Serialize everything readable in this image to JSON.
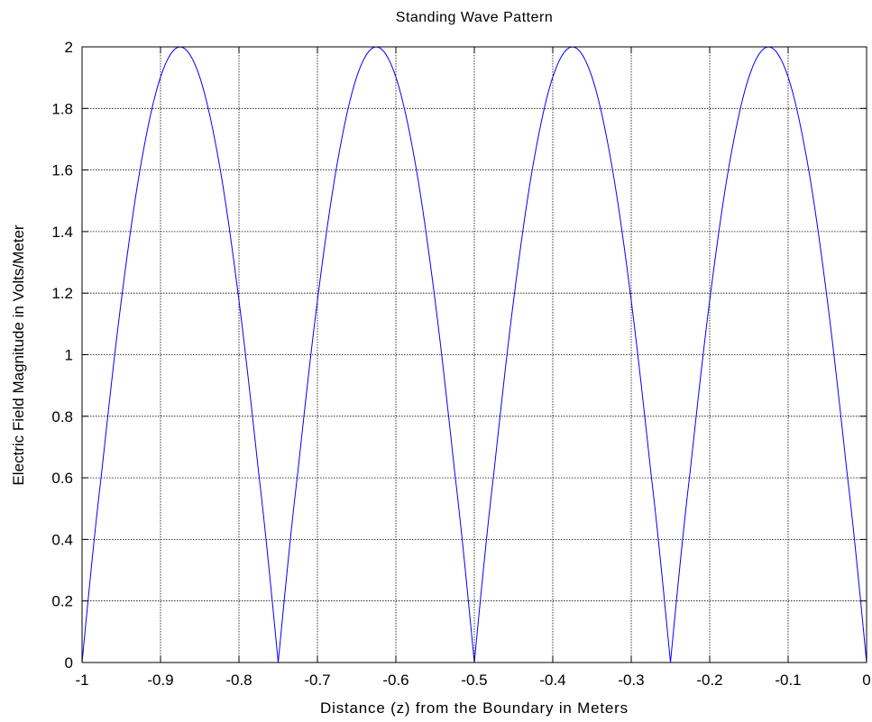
{
  "chart_data": {
    "type": "line",
    "title": "Standing Wave Pattern",
    "xlabel": "Distance (z) from the Boundary in Meters",
    "ylabel": "Electric Field Magnitude in Volts/Meter",
    "xlim": [
      -1,
      0
    ],
    "ylim": [
      0,
      2
    ],
    "grid": true,
    "x_ticks": [
      -1,
      -0.9,
      -0.8,
      -0.7,
      -0.6,
      -0.5,
      -0.4,
      -0.3,
      -0.2,
      -0.1,
      0
    ],
    "x_tick_labels": [
      "-1",
      "-0.9",
      "-0.8",
      "-0.7",
      "-0.6",
      "-0.5",
      "-0.4",
      "-0.3",
      "-0.2",
      "-0.1",
      "0"
    ],
    "y_ticks": [
      0,
      0.2,
      0.4,
      0.6,
      0.8,
      1,
      1.2,
      1.4,
      1.6,
      1.8,
      2
    ],
    "y_tick_labels": [
      "0",
      "0.2",
      "0.4",
      "0.6",
      "0.8",
      "1",
      "1.2",
      "1.4",
      "1.6",
      "1.8",
      "2"
    ],
    "series": [
      {
        "color": "#0000ff",
        "x": [
          -1,
          -0.975,
          -0.95,
          -0.925,
          -0.9,
          -0.875,
          -0.85,
          -0.825,
          -0.8,
          -0.775,
          -0.75,
          -0.725,
          -0.7,
          -0.675,
          -0.65,
          -0.625,
          -0.6,
          -0.575,
          -0.55,
          -0.525,
          -0.5,
          -0.475,
          -0.45,
          -0.425,
          -0.4,
          -0.375,
          -0.35,
          -0.325,
          -0.3,
          -0.275,
          -0.25,
          -0.225,
          -0.2,
          -0.175,
          -0.15,
          -0.125,
          -0.1,
          -0.075,
          -0.05,
          -0.025,
          0
        ],
        "y": [
          0,
          0.618,
          1.176,
          1.618,
          1.902,
          2,
          1.902,
          1.618,
          1.176,
          0.618,
          0,
          0.618,
          1.176,
          1.618,
          1.902,
          2,
          1.902,
          1.618,
          1.176,
          0.618,
          0,
          0.618,
          1.176,
          1.618,
          1.902,
          2,
          1.902,
          1.618,
          1.176,
          0.618,
          0,
          0.618,
          1.176,
          1.618,
          1.902,
          2,
          1.902,
          1.618,
          1.176,
          0.618,
          0
        ]
      }
    ]
  }
}
